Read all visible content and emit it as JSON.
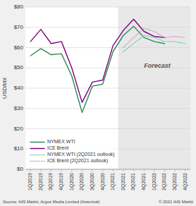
{
  "chart_data": {
    "type": "line",
    "categories": [
      "1Q2019",
      "2Q2019",
      "3Q2019",
      "4Q2019",
      "1Q2020",
      "2Q2020",
      "3Q2020",
      "4Q2020",
      "1Q2021",
      "2Q2021",
      "3Q2021",
      "4Q2021",
      "1Q2022",
      "2Q2022",
      "3Q2022",
      "4Q2022"
    ],
    "series": [
      {
        "name": "NYMEX WTI",
        "color": "#2e8b57",
        "line_style": "solid",
        "values": [
          56,
          59.5,
          56.5,
          57,
          46,
          28,
          41,
          42,
          58,
          66,
          70.5,
          65,
          63,
          62,
          null,
          null
        ]
      },
      {
        "name": "ICE Brent",
        "color": "#800080",
        "line_style": "solid",
        "values": [
          63,
          69,
          62,
          63,
          50,
          33,
          43,
          44,
          61,
          68.5,
          74,
          68,
          65.5,
          65,
          null,
          null
        ]
      },
      {
        "name": "NYMEX WTI (2Q2021 outlook)",
        "color": "#66cdaa",
        "line_style": "dotted",
        "values": [
          null,
          null,
          null,
          null,
          null,
          null,
          null,
          null,
          null,
          58,
          62,
          66,
          65,
          63,
          63,
          62
        ]
      },
      {
        "name": "ICE Brent (2Q2021 outlook)",
        "color": "#cc99cc",
        "line_style": "dotted",
        "values": [
          null,
          null,
          null,
          null,
          null,
          null,
          null,
          null,
          null,
          60,
          65,
          69.5,
          68,
          65,
          65.5,
          65
        ]
      }
    ],
    "ylabel": "USD/bbl",
    "ylim": [
      0,
      80
    ],
    "yticks": [
      {
        "value": 0,
        "label": "$0"
      },
      {
        "value": 10,
        "label": "$10"
      },
      {
        "value": 20,
        "label": "$20"
      },
      {
        "value": 30,
        "label": "$30"
      },
      {
        "value": 40,
        "label": "$40"
      },
      {
        "value": 50,
        "label": "$50"
      },
      {
        "value": 60,
        "label": "$60"
      },
      {
        "value": 70,
        "label": "$70"
      },
      {
        "value": 80,
        "label": "$80"
      }
    ],
    "grid": true,
    "legend": "lower left",
    "shaded_region": {
      "from": "2Q2021",
      "to": "4Q2022"
    },
    "annotations": [
      {
        "text": "Forecast",
        "x": "4Q2021",
        "y": 50
      }
    ],
    "source": "Source: IHS Markit, Argus Media Limited (historical)",
    "copyright": "© 2021 IHS Markit"
  }
}
